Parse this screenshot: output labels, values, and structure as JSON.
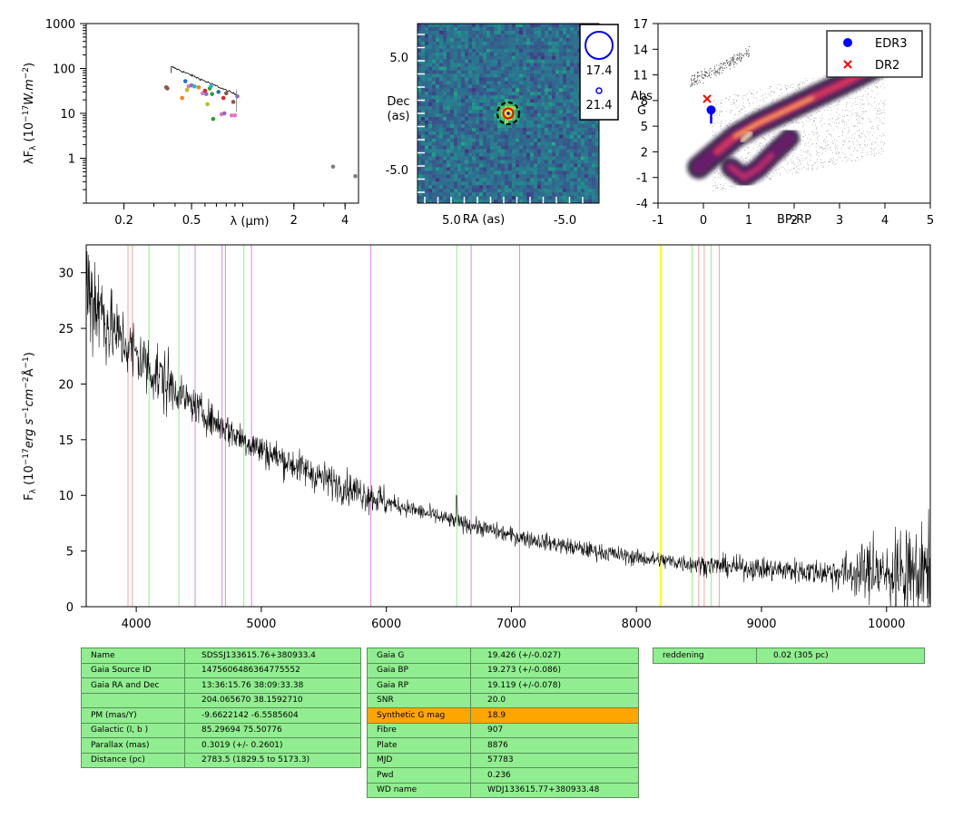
{
  "colors": {
    "spectrum": "#000000",
    "line_red": "#f4a4a4",
    "line_green": "#90ee90",
    "line_violet": "#dd88dd",
    "line_yellow": "#ffff00",
    "edr3": "#0000ff",
    "dr2": "#ff0000",
    "table_green": "#90ee90",
    "table_orange": "#ffa500"
  },
  "chart_data": [
    {
      "id": "sed",
      "type": "scatter",
      "xscale": "log",
      "yscale": "log",
      "xlim": [
        0.12,
        4.8
      ],
      "ylim": [
        0.1,
        1000
      ],
      "xlabel": "$\\lambda$ ($\\mu$m)",
      "ylabel": "$\\lambda F_\\lambda$ $(10^{-17}W.m^{-2})$",
      "xticks": [
        {
          "v": 0.2,
          "label": "0.2"
        },
        {
          "v": 0.5,
          "label": "0.5"
        },
        {
          "v": 2,
          "label": "2"
        },
        {
          "v": 4,
          "label": "4"
        }
      ],
      "yticks": [
        {
          "v": 1,
          "label": "1"
        },
        {
          "v": 10,
          "label": "10"
        },
        {
          "v": 100,
          "label": "100"
        },
        {
          "v": 1000,
          "label": "1000"
        }
      ],
      "points": [
        {
          "x": 0.355,
          "y": 38,
          "c": "#8c564b"
        },
        {
          "x": 0.36,
          "y": 36,
          "c": "#8c564b"
        },
        {
          "x": 0.44,
          "y": 22,
          "c": "#ff7f0e"
        },
        {
          "x": 0.46,
          "y": 52,
          "c": "#1f77b4"
        },
        {
          "x": 0.47,
          "y": 33,
          "c": "#bcbd22"
        },
        {
          "x": 0.48,
          "y": 40,
          "c": "#e377c2"
        },
        {
          "x": 0.5,
          "y": 42,
          "c": "#9467bd"
        },
        {
          "x": 0.52,
          "y": 40,
          "c": "#17becf"
        },
        {
          "x": 0.55,
          "y": 38,
          "c": "#ff7f0e"
        },
        {
          "x": 0.58,
          "y": 28,
          "c": "#e377c2"
        },
        {
          "x": 0.6,
          "y": 32,
          "c": "#d62728"
        },
        {
          "x": 0.61,
          "y": 27,
          "c": "#9467bd"
        },
        {
          "x": 0.62,
          "y": 16,
          "c": "#bcbd22"
        },
        {
          "x": 0.64,
          "y": 36,
          "c": "#2ca02c"
        },
        {
          "x": 0.65,
          "y": 40,
          "c": "#17becf"
        },
        {
          "x": 0.66,
          "y": 27,
          "c": "#2ca02c"
        },
        {
          "x": 0.67,
          "y": 7.5,
          "c": "#2ca02c"
        },
        {
          "x": 0.72,
          "y": 30,
          "c": "#1f77b4"
        },
        {
          "x": 0.75,
          "y": 9.5,
          "c": "#e377c2"
        },
        {
          "x": 0.77,
          "y": 22,
          "c": "#d62728"
        },
        {
          "x": 0.78,
          "y": 10,
          "c": "#9467bd"
        },
        {
          "x": 0.8,
          "y": 28,
          "c": "#8c564b"
        },
        {
          "x": 0.86,
          "y": 9,
          "c": "#e377c2"
        },
        {
          "x": 0.88,
          "y": 18,
          "c": "#8c564b"
        },
        {
          "x": 0.9,
          "y": 9,
          "c": "#e377c2"
        },
        {
          "x": 0.93,
          "y": 24,
          "c": "#9467bd"
        },
        {
          "x": 3.4,
          "y": 0.65,
          "c": "#7f7f7f"
        },
        {
          "x": 4.6,
          "y": 0.4,
          "c": "#7f7f7f"
        }
      ],
      "trace": {
        "x0": 0.38,
        "x1": 0.92,
        "y0": 110,
        "y1": 26
      }
    },
    {
      "id": "image",
      "type": "heatmap",
      "xlabel": "RA (as)",
      "ylabel": "Dec\n(as)",
      "xlim": [
        8,
        -8
      ],
      "ylim": [
        -8,
        8
      ],
      "xticks": [
        {
          "v": 5,
          "label": "5.0"
        },
        {
          "v": -5,
          "label": "-5.0"
        }
      ],
      "yticks": [
        {
          "v": 5,
          "label": "5.0"
        },
        {
          "v": -5,
          "label": "-5.0"
        }
      ],
      "legend": [
        "17.4",
        "21.4"
      ],
      "target": {
        "x": 0,
        "y": 0
      }
    },
    {
      "id": "hrd",
      "type": "scatter",
      "xlabel": "BP-RP",
      "ylabel": "Abs\nG",
      "xlim": [
        -1,
        5
      ],
      "ylim": [
        17,
        -4
      ],
      "xticks": [
        {
          "v": -1,
          "label": "-1"
        },
        {
          "v": 0,
          "label": "0"
        },
        {
          "v": 1,
          "label": "1"
        },
        {
          "v": 2,
          "label": "2"
        },
        {
          "v": 3,
          "label": "3"
        },
        {
          "v": 4,
          "label": "4"
        },
        {
          "v": 5,
          "label": "5"
        }
      ],
      "yticks": [
        {
          "v": -4,
          "label": "-4"
        },
        {
          "v": -1,
          "label": "-1"
        },
        {
          "v": 2,
          "label": "2"
        },
        {
          "v": 5,
          "label": "5"
        },
        {
          "v": 8,
          "label": "8"
        },
        {
          "v": 11,
          "label": "11"
        },
        {
          "v": 14,
          "label": "14"
        },
        {
          "v": 17,
          "label": "17"
        }
      ],
      "series": [
        {
          "name": "EDR3",
          "x": [
            0.17
          ],
          "y": [
            6.9
          ],
          "err": [
            5.3,
            6.9
          ]
        },
        {
          "name": "DR2",
          "x": [
            0.08
          ],
          "y": [
            8.2
          ]
        }
      ]
    },
    {
      "id": "spectrum",
      "type": "line",
      "xlabel": "",
      "ylabel": "F$_\\lambda$ $(10^{-17} erg\\ s^{-1} cm^{-2} \\AA^{-1})$",
      "xlim": [
        3600,
        10350
      ],
      "ylim": [
        0,
        32.5
      ],
      "xticks": [
        {
          "v": 4000,
          "label": "4000"
        },
        {
          "v": 5000,
          "label": "5000"
        },
        {
          "v": 6000,
          "label": "6000"
        },
        {
          "v": 7000,
          "label": "7000"
        },
        {
          "v": 8000,
          "label": "8000"
        },
        {
          "v": 9000,
          "label": "9000"
        },
        {
          "v": 10000,
          "label": "10000"
        }
      ],
      "yticks": [
        {
          "v": 0,
          "label": "0"
        },
        {
          "v": 5,
          "label": "5"
        },
        {
          "v": 10,
          "label": "10"
        },
        {
          "v": 15,
          "label": "15"
        },
        {
          "v": 20,
          "label": "20"
        },
        {
          "v": 25,
          "label": "25"
        },
        {
          "v": 30,
          "label": "30"
        }
      ],
      "vlines": [
        {
          "x": 3934,
          "c": "red"
        },
        {
          "x": 3969,
          "c": "red"
        },
        {
          "x": 4102,
          "c": "green"
        },
        {
          "x": 4341,
          "c": "green"
        },
        {
          "x": 4471,
          "c": "violet"
        },
        {
          "x": 4686,
          "c": "violet"
        },
        {
          "x": 4713,
          "c": "violet"
        },
        {
          "x": 4861,
          "c": "green"
        },
        {
          "x": 4922,
          "c": "violet"
        },
        {
          "x": 5876,
          "c": "violet"
        },
        {
          "x": 6563,
          "c": "green"
        },
        {
          "x": 6678,
          "c": "violet"
        },
        {
          "x": 7065,
          "c": "violet"
        },
        {
          "x": 8194,
          "c": "yellow"
        },
        {
          "x": 8446,
          "c": "green"
        },
        {
          "x": 8498,
          "c": "red"
        },
        {
          "x": 8542,
          "c": "red"
        },
        {
          "x": 8598,
          "c": "green"
        },
        {
          "x": 8662,
          "c": "red"
        }
      ],
      "continuum": [
        [
          3600,
          29
        ],
        [
          3800,
          25
        ],
        [
          4000,
          22.6
        ],
        [
          4200,
          20.5
        ],
        [
          4400,
          18.6
        ],
        [
          4600,
          16.8
        ],
        [
          4800,
          15.4
        ],
        [
          5000,
          14.1
        ],
        [
          5500,
          11.5
        ],
        [
          6000,
          9.4
        ],
        [
          6500,
          7.8
        ],
        [
          7000,
          6.4
        ],
        [
          7500,
          5.3
        ],
        [
          8000,
          4.4
        ],
        [
          8500,
          3.8
        ],
        [
          9000,
          3.4
        ],
        [
          9500,
          3.1
        ],
        [
          10000,
          3.0
        ],
        [
          10350,
          3.0
        ]
      ]
    }
  ],
  "tables": [
    {
      "id": "table-1",
      "rows": [
        {
          "k": "Name",
          "v": "SDSSJ133615.76+380933.4"
        },
        {
          "k": "Gaia Source ID",
          "v": "1475606486364775552"
        },
        {
          "k": "Gaia RA and Dec",
          "v": "13:36:15.76    38:09:33.38"
        },
        {
          "k": "",
          "v": "204.065670    38.1592710"
        },
        {
          "k": "PM (mas/Y)",
          "v": "-9.6622142    -6.5585604"
        },
        {
          "k": "Galactic (l, b )",
          "v": "85.29694    75.50776"
        },
        {
          "k": "Parallax (mas)",
          "v": "0.3019 (+/- 0.2601)"
        },
        {
          "k": "Distance (pc)",
          "v": "2783.5 (1829.5 to 5173.3)"
        }
      ]
    },
    {
      "id": "table-2",
      "rows": [
        {
          "k": "Gaia G",
          "v": "19.426 (+/-0.027)"
        },
        {
          "k": "Gaia BP",
          "v": "19.273 (+/-0.086)"
        },
        {
          "k": "Gaia RP",
          "v": "19.119 (+/-0.078)"
        },
        {
          "k": "SNR",
          "v": "20.0"
        },
        {
          "k": "Synthetic G mag",
          "v": "18.9",
          "highlight": true
        },
        {
          "k": "Fibre",
          "v": "907"
        },
        {
          "k": "Plate",
          "v": "8876"
        },
        {
          "k": "MJD",
          "v": "57783"
        },
        {
          "k": "Pwd",
          "v": "0.236"
        },
        {
          "k": "WD name",
          "v": "WDJ133615.77+380933.48"
        }
      ]
    },
    {
      "id": "table-3",
      "rows": [
        {
          "k": "reddening",
          "v": "0.02 (305 pc)"
        }
      ]
    }
  ]
}
